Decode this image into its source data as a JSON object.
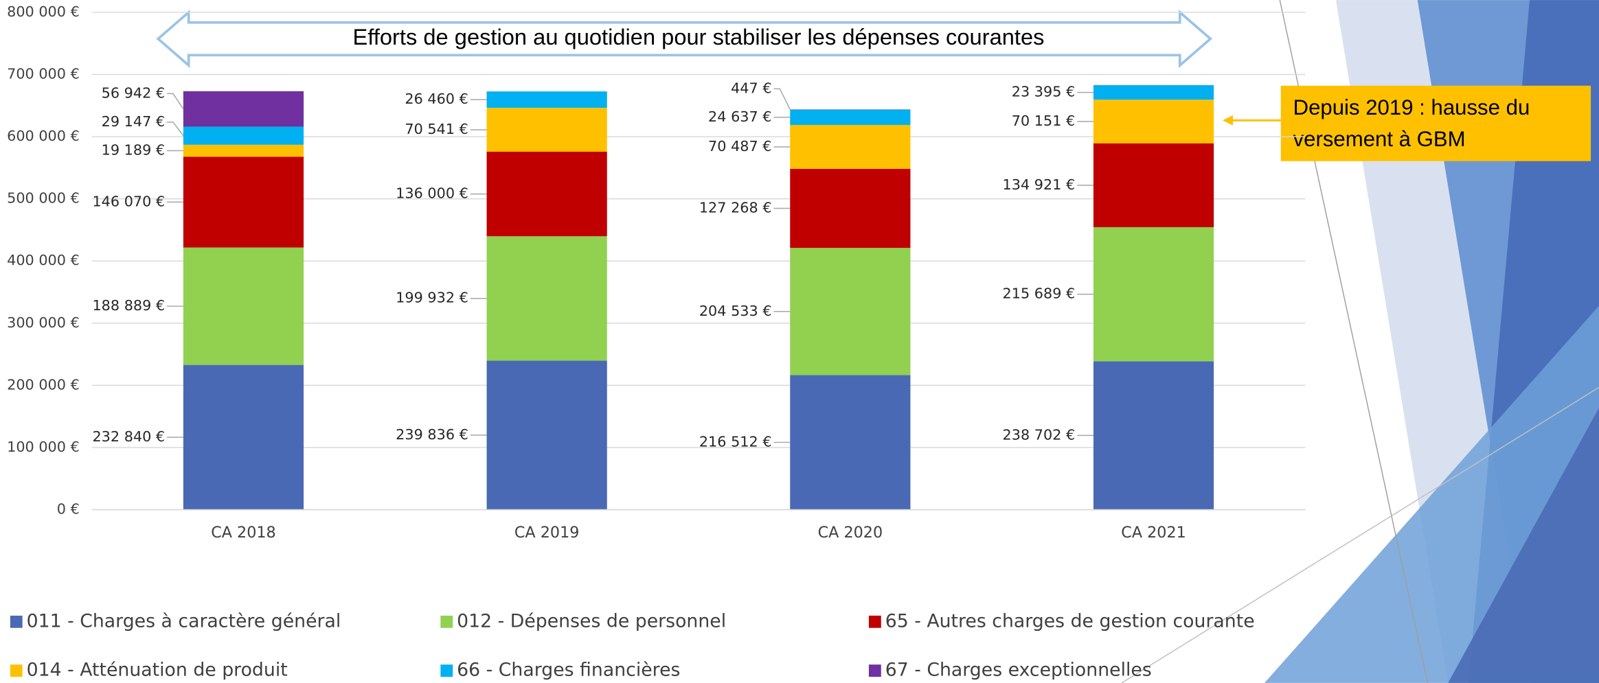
{
  "chart_data": {
    "type": "bar",
    "stacked": true,
    "categories": [
      "CA 2018",
      "CA 2019",
      "CA 2020",
      "CA 2021"
    ],
    "series": [
      {
        "name": "011 - Charges à caractère général",
        "color": "#4a69b4",
        "values": [
          232840,
          239836,
          216512,
          238702
        ],
        "value_labels": [
          "232 840 €",
          "239 836 €",
          "216 512 €",
          "238 702 €"
        ]
      },
      {
        "name": "012 - Dépenses de personnel",
        "color": "#92d050",
        "values": [
          188889,
          199932,
          204533,
          215689
        ],
        "value_labels": [
          "188 889 €",
          "199 932 €",
          "204 533 €",
          "215 689 €"
        ]
      },
      {
        "name": "65 - Autres charges de gestion courante",
        "color": "#c00000",
        "values": [
          146070,
          136000,
          127268,
          134921
        ],
        "value_labels": [
          "146 070 €",
          "136 000 €",
          "127 268 €",
          "134 921 €"
        ]
      },
      {
        "name": "014 - Atténuation de produit",
        "color": "#ffc000",
        "values": [
          19189,
          70541,
          70487,
          70151
        ],
        "value_labels": [
          "19 189 €",
          "70 541 €",
          "70 487 €",
          "70 151 €"
        ]
      },
      {
        "name": "66 - Charges financières",
        "color": "#00b0f0",
        "values": [
          29147,
          26460,
          24637,
          23395
        ],
        "value_labels": [
          "29 147 €",
          "26 460 €",
          "24 637 €",
          "23 395 €"
        ]
      },
      {
        "name": "67 - Charges exceptionnelles",
        "color": "#7030a0",
        "values": [
          56942,
          null,
          447,
          null
        ],
        "value_labels": [
          "56 942 €",
          null,
          "447 €",
          null
        ]
      }
    ],
    "ylim": [
      0,
      800000
    ],
    "yticks": [
      {
        "value": 0,
        "label": "0 €"
      },
      {
        "value": 100000,
        "label": "100 000 €"
      },
      {
        "value": 200000,
        "label": "200 000 €"
      },
      {
        "value": 300000,
        "label": "300 000 €"
      },
      {
        "value": 400000,
        "label": "400 000 €"
      },
      {
        "value": 500000,
        "label": "500 000 €"
      },
      {
        "value": 600000,
        "label": "600 000 €"
      },
      {
        "value": 700000,
        "label": "700 000 €"
      },
      {
        "value": 800000,
        "label": "800 000 €"
      }
    ],
    "grid": true,
    "legend": "bottom",
    "annotations": {
      "arrow": "Efforts de gestion au quotidien pour stabiliser les dépenses courantes",
      "callout": [
        "Depuis 2019 : hausse du",
        "versement à GBM"
      ]
    }
  }
}
